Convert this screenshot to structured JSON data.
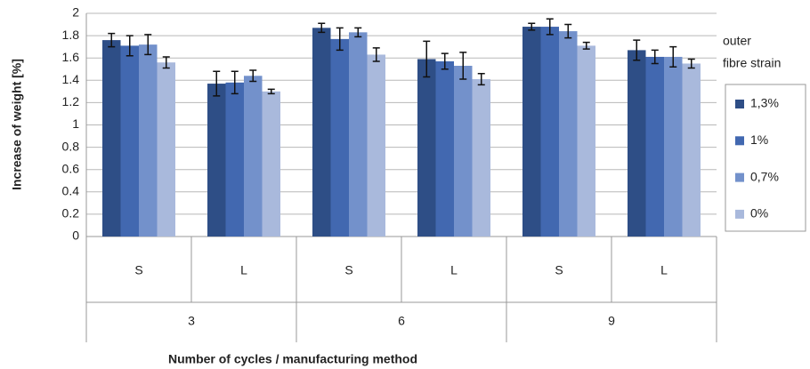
{
  "chart_data": {
    "type": "bar",
    "x_label": "Number of cycles / manufacturing method",
    "y_label": "Increase of weight [%]",
    "categories": [
      "S",
      "L",
      "S",
      "L",
      "S",
      "L"
    ],
    "groups": [
      "3",
      "6",
      "9"
    ],
    "legend_title": [
      "outer",
      "fibre strain"
    ],
    "series": [
      {
        "name": "1,3%",
        "color": "#2e4e86",
        "values": [
          1.76,
          1.37,
          1.87,
          1.59,
          1.88,
          1.67
        ],
        "errors": [
          0.06,
          0.11,
          0.04,
          0.16,
          0.03,
          0.09
        ]
      },
      {
        "name": "1%",
        "color": "#4268b0",
        "values": [
          1.71,
          1.38,
          1.77,
          1.57,
          1.88,
          1.61
        ],
        "errors": [
          0.09,
          0.1,
          0.1,
          0.07,
          0.07,
          0.06
        ]
      },
      {
        "name": "0,7%",
        "color": "#7391cb",
        "values": [
          1.72,
          1.44,
          1.83,
          1.53,
          1.84,
          1.61
        ],
        "errors": [
          0.09,
          0.05,
          0.04,
          0.12,
          0.06,
          0.09
        ]
      },
      {
        "name": "0%",
        "color": "#a9b9dc",
        "values": [
          1.56,
          1.3,
          1.63,
          1.41,
          1.71,
          1.55
        ],
        "errors": [
          0.05,
          0.02,
          0.06,
          0.05,
          0.03,
          0.04
        ]
      }
    ],
    "ylim": [
      0,
      2
    ],
    "yticks": [
      0,
      0.2,
      0.4,
      0.6,
      0.8,
      1,
      1.2,
      1.4,
      1.6,
      1.8,
      2
    ],
    "grid": true
  }
}
